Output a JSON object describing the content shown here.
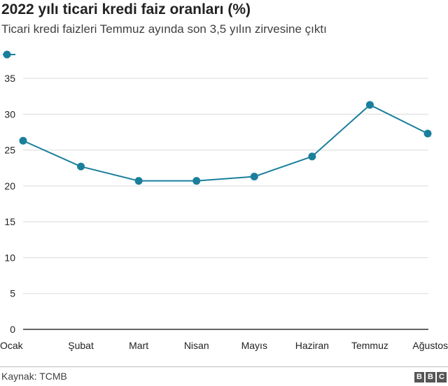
{
  "header": {
    "title": "2022 yılı ticari kredi faiz oranları (%)",
    "subtitle": "Ticari kredi faizleri Temmuz ayında son 3,5 yılın zirvesine çıktı"
  },
  "colors": {
    "series": "#1a7f9c",
    "grid": "#d9d9d9",
    "axis": "#333333",
    "text": "#222222"
  },
  "chart_data": {
    "type": "line",
    "title": "2022 yılı ticari kredi faiz oranları (%)",
    "subtitle": "Ticari kredi faizleri Temmuz ayında son 3,5 yılın zirvesine çıktı",
    "categories": [
      "Ocak",
      "Şubat",
      "Mart",
      "Nisan",
      "Mayıs",
      "Haziran",
      "Temmuz",
      "Ağustos"
    ],
    "series": [
      {
        "name": "",
        "values": [
          26.3,
          22.7,
          20.7,
          20.7,
          21.3,
          24.1,
          31.3,
          27.3
        ]
      }
    ],
    "yticks": [
      0,
      5,
      10,
      15,
      20,
      25,
      30,
      35
    ],
    "ylim": [
      0,
      35
    ],
    "xlabel": "",
    "ylabel": "",
    "grid": true,
    "legend": "top-left"
  },
  "footer": {
    "source": "Kaynak: TCMB",
    "logo": [
      "B",
      "B",
      "C"
    ]
  }
}
